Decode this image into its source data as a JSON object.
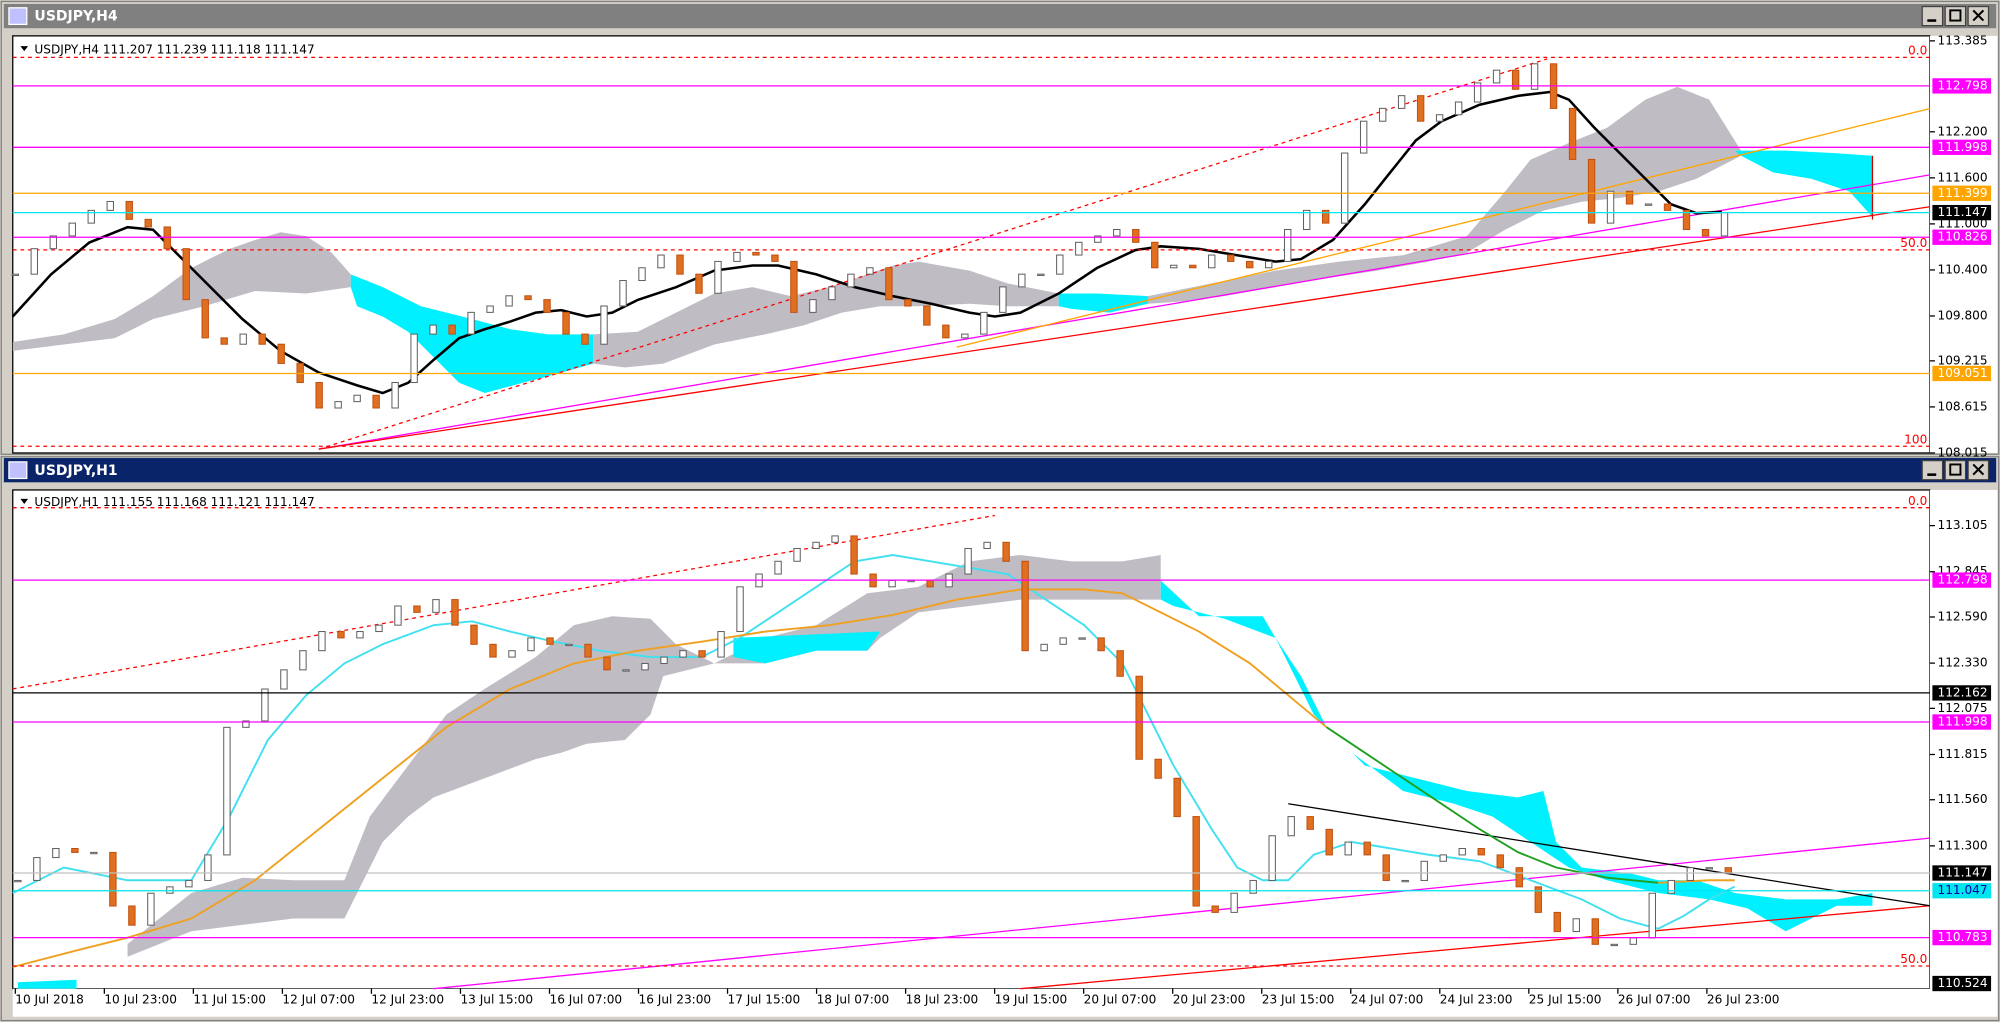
{
  "windows": [
    {
      "title": "USDJPY,H4",
      "info": "USDJPY,H4  111.207 111.239 111.118 111.147",
      "ylim": [
        108.015,
        113.45
      ],
      "yticks": [
        113.385,
        {
          "value": 112.2,
          "label": "112.200"
        },
        {
          "value": 111.6,
          "label": "111.600"
        },
        {
          "value": 111.0,
          "label": "111.000"
        },
        {
          "value": 110.4,
          "label": "110.400"
        },
        {
          "value": 109.8,
          "label": "109.800"
        },
        109.215,
        108.615,
        108.015
      ],
      "levels": [
        {
          "value": 112.798,
          "line": "#ff00ff",
          "box": "#ff00ff",
          "text": "#ffffff"
        },
        {
          "value": 111.998,
          "line": "#ff00ff",
          "box": "#ff00ff",
          "text": "#ffffff"
        },
        {
          "value": 111.399,
          "line": "#ffa500",
          "box": "#ffa500",
          "text": "#ffffff"
        },
        {
          "value": 111.147,
          "line": "#00e5ee",
          "box": "#000000",
          "text": "#ffffff"
        },
        {
          "value": 110.826,
          "line": "#ff00ff",
          "box": "#ff00ff",
          "text": "#ffffff"
        },
        {
          "value": 109.051,
          "line": "#ffa500",
          "box": "#ffa500",
          "text": "#ffffff"
        }
      ],
      "fibs": [
        {
          "label": "0.0",
          "value": 113.17
        },
        {
          "label": "50.0",
          "value": 110.661
        },
        {
          "label": "100",
          "value": 108.103
        }
      ],
      "closes": [
        110.345,
        110.677,
        110.843,
        111.01,
        111.176,
        111.292,
        111.059,
        110.96,
        110.677,
        110.013,
        109.515,
        109.432,
        109.564,
        109.432,
        109.182,
        108.933,
        108.601,
        108.684,
        108.767,
        108.601,
        108.933,
        109.564,
        109.681,
        109.564,
        109.847,
        109.93,
        110.063,
        110.013,
        109.847,
        109.564,
        109.432,
        109.93,
        110.262,
        110.428,
        110.594,
        110.345,
        110.096,
        110.511,
        110.628,
        110.594,
        110.511,
        109.847,
        110.013,
        110.179,
        110.345,
        110.428,
        110.013,
        109.93,
        109.681,
        109.515,
        109.564,
        109.847,
        110.179,
        110.345,
        110.345,
        110.594,
        110.76,
        110.843,
        110.927,
        110.76,
        110.428,
        110.461,
        110.428,
        110.594,
        110.511,
        110.428,
        110.511,
        110.927,
        111.176,
        111.01,
        111.923,
        112.338,
        112.505,
        112.671,
        112.338,
        112.422,
        112.588,
        112.837,
        113.003,
        112.754,
        113.086,
        112.505,
        111.84,
        111.01,
        111.425,
        111.259,
        111.259,
        111.176,
        110.927,
        110.843,
        111.147
      ],
      "xlabels": []
    },
    {
      "title": "USDJPY,H1",
      "info": "USDJPY,H1  111.155 111.168 111.121 111.147",
      "ylim": [
        110.495,
        113.306
      ],
      "yticks": [
        113.105,
        112.845,
        {
          "value": 112.59,
          "label": "112.590"
        },
        {
          "value": 112.33,
          "label": "112.330"
        },
        112.075,
        111.815,
        {
          "value": 111.56,
          "label": "111.560"
        },
        {
          "value": 111.3,
          "label": "111.300"
        }
      ],
      "levels": [
        {
          "value": 112.798,
          "line": "#ff00ff",
          "box": "#ff00ff",
          "text": "#ffffff"
        },
        {
          "value": 112.162,
          "line": "#000000",
          "box": "#000000",
          "text": "#ffffff"
        },
        {
          "value": 111.998,
          "line": "#ff00ff",
          "box": "#ff00ff",
          "text": "#ffffff"
        },
        {
          "value": 111.147,
          "line": "#c0c0c0",
          "box": "#000000",
          "text": "#ffffff"
        },
        {
          "value": 111.047,
          "line": "#00e5ee",
          "box": "#00e5ee",
          "text": "#0000aa"
        },
        {
          "value": 110.783,
          "line": "#ff00ff",
          "box": "#ff00ff",
          "text": "#ffffff"
        },
        {
          "value": 110.524,
          "line": "none",
          "box": "#000000",
          "text": "#ffffff"
        }
      ],
      "fibs": [
        {
          "label": "0.0",
          "value": 113.206
        },
        {
          "label": "50.0",
          "value": 110.623
        }
      ],
      "closes": [
        111.105,
        111.234,
        111.285,
        111.263,
        111.263,
        110.961,
        110.853,
        111.033,
        111.069,
        111.105,
        111.249,
        111.968,
        112.004,
        112.184,
        112.292,
        112.4,
        112.508,
        112.472,
        112.508,
        112.544,
        112.652,
        112.616,
        112.688,
        112.544,
        112.436,
        112.364,
        112.4,
        112.472,
        112.436,
        112.436,
        112.364,
        112.292,
        112.292,
        112.328,
        112.364,
        112.4,
        112.364,
        112.508,
        112.76,
        112.832,
        112.904,
        112.976,
        113.011,
        113.047,
        112.832,
        112.76,
        112.796,
        112.796,
        112.76,
        112.832,
        112.976,
        113.011,
        112.904,
        112.4,
        112.436,
        112.472,
        112.472,
        112.4,
        112.256,
        111.788,
        111.681,
        111.465,
        110.961,
        110.925,
        111.033,
        111.105,
        111.357,
        111.465,
        111.393,
        111.249,
        111.321,
        111.249,
        111.105,
        111.105,
        111.213,
        111.249,
        111.285,
        111.249,
        111.177,
        111.069,
        110.925,
        110.817,
        110.889,
        110.745,
        110.745,
        110.781,
        111.033,
        111.105,
        111.177,
        111.177,
        111.147
      ],
      "xlabels": [
        "10 Jul 2018",
        "10 Jul 23:00",
        "11 Jul 15:00",
        "12 Jul 07:00",
        "12 Jul 23:00",
        "13 Jul 15:00",
        "16 Jul 07:00",
        "16 Jul 23:00",
        "17 Jul 15:00",
        "18 Jul 07:00",
        "18 Jul 23:00",
        "19 Jul 15:00",
        "20 Jul 07:00",
        "20 Jul 23:00",
        "23 Jul 15:00",
        "24 Jul 07:00",
        "24 Jul 23:00",
        "25 Jul 15:00",
        "26 Jul 07:00",
        "26 Jul 23:00"
      ]
    }
  ]
}
